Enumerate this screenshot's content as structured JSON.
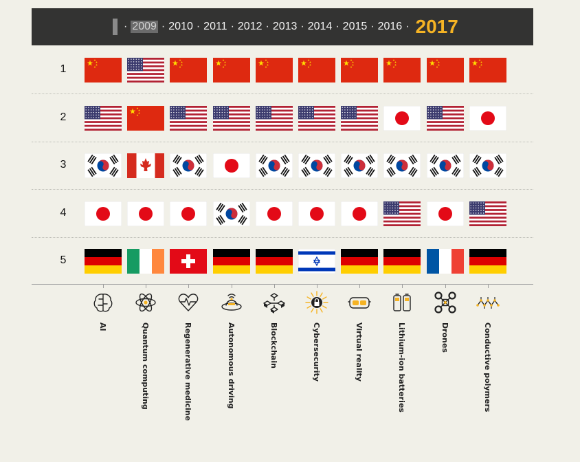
{
  "timeline": {
    "separator": "·",
    "years": [
      "2009",
      "2010",
      "2011",
      "2012",
      "2013",
      "2014",
      "2015",
      "2016",
      "2017"
    ],
    "highlighted_year": "2009",
    "current_year": "2017",
    "accent_color": "#f5b324"
  },
  "chart_data": {
    "type": "table",
    "ranks": [
      "1",
      "2",
      "3",
      "4",
      "5"
    ],
    "technologies": [
      "AI",
      "Quantum computing",
      "Regenerative medicine",
      "Autonomous driving",
      "Blockchain",
      "Cybersecurity",
      "Virtual reality",
      "Lithium-ion batteries",
      "Drones",
      "Conductive polymers"
    ],
    "icons": [
      "brain-icon",
      "atom-icon",
      "heart-monitor-icon",
      "autonomous-car-icon",
      "blockchain-icon",
      "lock-shield-icon",
      "vr-headset-icon",
      "battery-icon",
      "drone-icon",
      "polymer-molecule-icon"
    ],
    "flags": [
      [
        "China",
        "USA",
        "China",
        "China",
        "China",
        "China",
        "China",
        "China",
        "China",
        "China"
      ],
      [
        "USA",
        "China",
        "USA",
        "USA",
        "USA",
        "USA",
        "USA",
        "Japan",
        "USA",
        "Japan"
      ],
      [
        "South Korea",
        "Canada",
        "South Korea",
        "Japan",
        "South Korea",
        "South Korea",
        "South Korea",
        "South Korea",
        "South Korea",
        "South Korea"
      ],
      [
        "Japan",
        "Japan",
        "Japan",
        "South Korea",
        "Japan",
        "Japan",
        "Japan",
        "USA",
        "Japan",
        "USA"
      ],
      [
        "Germany",
        "Ireland",
        "Switzerland",
        "Germany",
        "Germany",
        "Israel",
        "Germany",
        "Germany",
        "France",
        "Germany"
      ]
    ]
  }
}
